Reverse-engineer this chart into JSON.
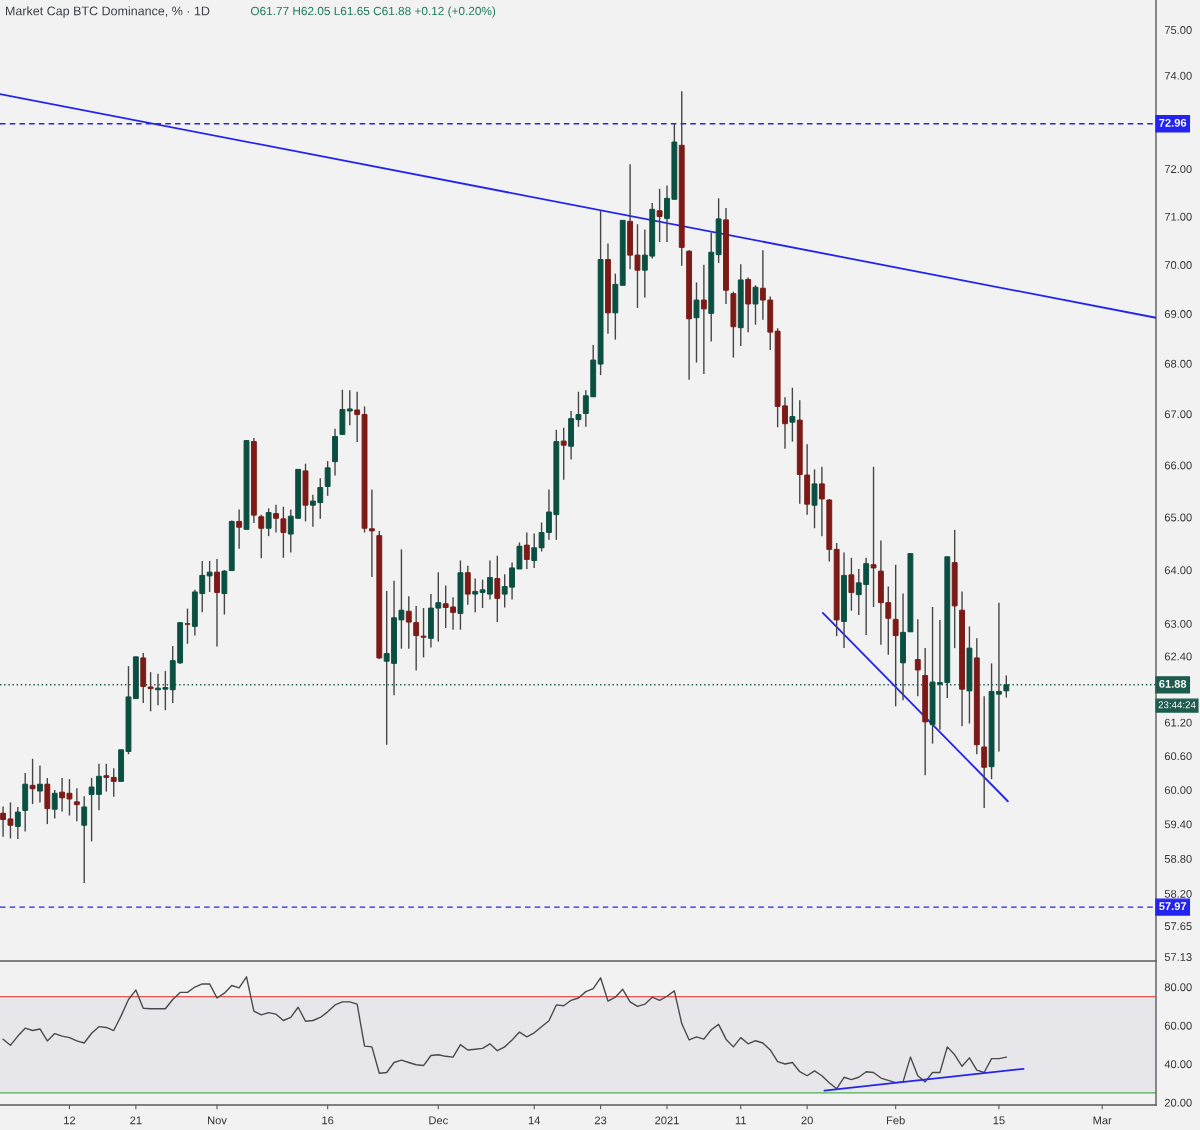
{
  "chart_data": [
    {
      "type": "candlestick",
      "title": "Market Cap BTC Dominance, % · 1D",
      "subtitle": "O61.77 H62.05 L61.65 C61.88 +0.12 (+0.20%)",
      "x": [
        "2020-10-03",
        "2020-10-04",
        "2020-10-05",
        "2020-10-06",
        "2020-10-07",
        "2020-10-08",
        "2020-10-09",
        "2020-10-10",
        "2020-10-11",
        "2020-10-12",
        "2020-10-13",
        "2020-10-14",
        "2020-10-15",
        "2020-10-16",
        "2020-10-17",
        "2020-10-18",
        "2020-10-19",
        "2020-10-20",
        "2020-10-21",
        "2020-10-22",
        "2020-10-23",
        "2020-10-24",
        "2020-10-25",
        "2020-10-26",
        "2020-10-27",
        "2020-10-28",
        "2020-10-29",
        "2020-10-30",
        "2020-10-31",
        "2020-11-01",
        "2020-11-02",
        "2020-11-03",
        "2020-11-04",
        "2020-11-05",
        "2020-11-06",
        "2020-11-07",
        "2020-11-08",
        "2020-11-09",
        "2020-11-10",
        "2020-11-11",
        "2020-11-12",
        "2020-11-13",
        "2020-11-14",
        "2020-11-15",
        "2020-11-16",
        "2020-11-17",
        "2020-11-18",
        "2020-11-19",
        "2020-11-20",
        "2020-11-21",
        "2020-11-22",
        "2020-11-23",
        "2020-11-24",
        "2020-11-25",
        "2020-11-26",
        "2020-11-27",
        "2020-11-28",
        "2020-11-29",
        "2020-11-30",
        "2020-12-01",
        "2020-12-02",
        "2020-12-03",
        "2020-12-04",
        "2020-12-05",
        "2020-12-06",
        "2020-12-07",
        "2020-12-08",
        "2020-12-09",
        "2020-12-10",
        "2020-12-11",
        "2020-12-12",
        "2020-12-13",
        "2020-12-14",
        "2020-12-15",
        "2020-12-16",
        "2020-12-17",
        "2020-12-18",
        "2020-12-19",
        "2020-12-20",
        "2020-12-21",
        "2020-12-22",
        "2020-12-23",
        "2020-12-24",
        "2020-12-25",
        "2020-12-26",
        "2020-12-27",
        "2020-12-28",
        "2020-12-29",
        "2020-12-30",
        "2020-12-31",
        "2021-01-01",
        "2021-01-02",
        "2021-01-03",
        "2021-01-04",
        "2021-01-05",
        "2021-01-06",
        "2021-01-07",
        "2021-01-08",
        "2021-01-09",
        "2021-01-10",
        "2021-01-11",
        "2021-01-12",
        "2021-01-13",
        "2021-01-14",
        "2021-01-15",
        "2021-01-16",
        "2021-01-17",
        "2021-01-18",
        "2021-01-19",
        "2021-01-20",
        "2021-01-21",
        "2021-01-22",
        "2021-01-23",
        "2021-01-24",
        "2021-01-25",
        "2021-01-26",
        "2021-01-27",
        "2021-01-28",
        "2021-01-29",
        "2021-01-30",
        "2021-01-31",
        "2021-02-01",
        "2021-02-02",
        "2021-02-03",
        "2021-02-04",
        "2021-02-05",
        "2021-02-06",
        "2021-02-07",
        "2021-02-08",
        "2021-02-09",
        "2021-02-10",
        "2021-02-11",
        "2021-02-12",
        "2021-02-13",
        "2021-02-14",
        "2021-02-15",
        "2021-02-16"
      ],
      "ohlc": [
        [
          59.59,
          59.71,
          59.18,
          59.48
        ],
        [
          59.49,
          59.78,
          59.15,
          59.38
        ],
        [
          59.36,
          59.7,
          59.14,
          59.61
        ],
        [
          59.64,
          60.3,
          59.27,
          60.1
        ],
        [
          60.08,
          60.55,
          59.75,
          60.02
        ],
        [
          59.98,
          60.43,
          59.78,
          60.1
        ],
        [
          60.1,
          60.21,
          59.4,
          59.67
        ],
        [
          59.66,
          60.0,
          59.5,
          59.94
        ],
        [
          59.96,
          60.21,
          59.62,
          59.86
        ],
        [
          59.94,
          60.19,
          59.55,
          59.84
        ],
        [
          59.79,
          60.03,
          59.45,
          59.74
        ],
        [
          59.38,
          59.89,
          58.38,
          59.7
        ],
        [
          59.92,
          60.21,
          59.1,
          60.05
        ],
        [
          59.92,
          60.46,
          59.64,
          60.24
        ],
        [
          60.25,
          60.46,
          59.97,
          60.22
        ],
        [
          60.22,
          60.38,
          59.88,
          60.15
        ],
        [
          60.15,
          60.71,
          60.15,
          60.71
        ],
        [
          60.68,
          62.22,
          60.63,
          61.66
        ],
        [
          61.63,
          62.39,
          61.63,
          62.39
        ],
        [
          62.37,
          62.46,
          61.55,
          61.85
        ],
        [
          61.84,
          62.11,
          61.4,
          61.81
        ],
        [
          61.79,
          62.08,
          61.51,
          61.82
        ],
        [
          61.8,
          62.13,
          61.42,
          61.83
        ],
        [
          61.79,
          62.59,
          61.55,
          62.32
        ],
        [
          62.28,
          63.02,
          62.26,
          63.02
        ],
        [
          63.0,
          63.28,
          62.63,
          62.99
        ],
        [
          62.95,
          63.63,
          62.78,
          63.59
        ],
        [
          63.56,
          64.17,
          63.21,
          63.9
        ],
        [
          63.89,
          64.17,
          63.59,
          63.96
        ],
        [
          63.96,
          64.21,
          62.58,
          63.58
        ],
        [
          63.56,
          64.0,
          63.17,
          63.98
        ],
        [
          63.99,
          64.94,
          63.99,
          64.92
        ],
        [
          64.92,
          65.15,
          64.4,
          64.81
        ],
        [
          64.77,
          66.48,
          64.77,
          66.48
        ],
        [
          66.46,
          66.53,
          64.89,
          65.04
        ],
        [
          65.01,
          65.05,
          64.22,
          64.79
        ],
        [
          64.79,
          65.17,
          64.64,
          65.09
        ],
        [
          65.07,
          65.24,
          64.71,
          64.98
        ],
        [
          64.97,
          65.2,
          64.23,
          64.71
        ],
        [
          64.68,
          65.15,
          64.33,
          65.02
        ],
        [
          64.98,
          65.92,
          64.98,
          65.92
        ],
        [
          65.89,
          66.03,
          64.92,
          65.23
        ],
        [
          65.23,
          65.43,
          64.82,
          65.31
        ],
        [
          65.28,
          65.75,
          64.97,
          65.57
        ],
        [
          65.59,
          66.08,
          65.41,
          65.95
        ],
        [
          66.07,
          66.71,
          65.8,
          66.56
        ],
        [
          66.6,
          67.48,
          66.6,
          67.09
        ],
        [
          67.06,
          67.47,
          66.78,
          67.1
        ],
        [
          67.08,
          67.44,
          66.45,
          66.99
        ],
        [
          66.99,
          67.15,
          64.71,
          64.79
        ],
        [
          64.78,
          65.53,
          63.87,
          64.74
        ],
        [
          64.65,
          64.74,
          62.35,
          62.37
        ],
        [
          62.31,
          63.61,
          60.8,
          62.45
        ],
        [
          62.27,
          63.8,
          61.69,
          63.11
        ],
        [
          63.07,
          64.39,
          62.54,
          63.25
        ],
        [
          63.23,
          63.51,
          62.54,
          63.03
        ],
        [
          63.02,
          63.33,
          62.14,
          62.78
        ],
        [
          62.77,
          63.29,
          62.38,
          62.75
        ],
        [
          62.73,
          63.55,
          62.56,
          63.29
        ],
        [
          63.29,
          63.96,
          62.67,
          63.39
        ],
        [
          63.37,
          63.71,
          62.92,
          63.3
        ],
        [
          63.31,
          63.49,
          62.89,
          63.21
        ],
        [
          63.19,
          64.18,
          62.89,
          63.95
        ],
        [
          63.95,
          64.08,
          63.35,
          63.55
        ],
        [
          63.55,
          63.84,
          63.21,
          63.6
        ],
        [
          63.58,
          63.82,
          63.29,
          63.63
        ],
        [
          63.55,
          64.18,
          63.45,
          63.86
        ],
        [
          63.84,
          64.27,
          63.03,
          63.47
        ],
        [
          63.55,
          63.92,
          63.3,
          63.69
        ],
        [
          63.68,
          64.14,
          63.45,
          64.04
        ],
        [
          64.02,
          64.52,
          64.02,
          64.45
        ],
        [
          64.47,
          64.71,
          64.02,
          64.2
        ],
        [
          64.18,
          64.69,
          64.04,
          64.42
        ],
        [
          64.42,
          64.9,
          64.35,
          64.71
        ],
        [
          64.71,
          65.53,
          64.57,
          65.1
        ],
        [
          65.05,
          66.69,
          64.57,
          66.46
        ],
        [
          66.47,
          66.73,
          65.72,
          66.39
        ],
        [
          66.37,
          67.06,
          66.11,
          66.91
        ],
        [
          66.89,
          67.44,
          66.75,
          66.99
        ],
        [
          67.01,
          67.47,
          66.75,
          67.36
        ],
        [
          67.34,
          68.37,
          67.34,
          68.07
        ],
        [
          67.99,
          71.12,
          67.77,
          70.11
        ],
        [
          70.11,
          70.44,
          68.6,
          69.02
        ],
        [
          69.02,
          69.82,
          68.48,
          69.6
        ],
        [
          69.58,
          70.92,
          69.58,
          70.92
        ],
        [
          70.9,
          72.1,
          69.91,
          70.2
        ],
        [
          70.2,
          70.84,
          69.12,
          69.89
        ],
        [
          69.89,
          70.73,
          69.33,
          70.2
        ],
        [
          70.18,
          71.28,
          70.13,
          71.15
        ],
        [
          71.12,
          71.58,
          70.47,
          71.0
        ],
        [
          70.96,
          71.65,
          70.47,
          71.38
        ],
        [
          71.36,
          72.97,
          71.36,
          72.57
        ],
        [
          72.5,
          73.66,
          69.98,
          70.36
        ],
        [
          70.28,
          70.3,
          67.68,
          68.9
        ],
        [
          68.92,
          69.64,
          68.02,
          69.28
        ],
        [
          69.28,
          70.0,
          67.79,
          69.1
        ],
        [
          69.01,
          70.67,
          68.44,
          70.26
        ],
        [
          70.21,
          71.38,
          70.04,
          70.95
        ],
        [
          70.93,
          71.18,
          69.2,
          69.48
        ],
        [
          69.41,
          69.45,
          68.12,
          68.74
        ],
        [
          68.72,
          70.01,
          68.35,
          69.69
        ],
        [
          69.7,
          69.74,
          68.63,
          69.2
        ],
        [
          69.2,
          69.58,
          68.78,
          69.54
        ],
        [
          69.52,
          70.3,
          68.88,
          69.28
        ],
        [
          69.28,
          69.35,
          68.27,
          68.63
        ],
        [
          68.65,
          68.71,
          66.74,
          67.15
        ],
        [
          67.16,
          67.33,
          66.32,
          66.81
        ],
        [
          66.84,
          67.52,
          66.46,
          66.95
        ],
        [
          66.88,
          67.27,
          65.26,
          65.82
        ],
        [
          65.81,
          66.41,
          65.05,
          65.25
        ],
        [
          65.23,
          65.92,
          64.79,
          65.64
        ],
        [
          65.64,
          65.97,
          64.64,
          65.35
        ],
        [
          65.33,
          65.35,
          64.16,
          64.39
        ],
        [
          64.39,
          64.51,
          62.77,
          63.07
        ],
        [
          63.04,
          64.33,
          62.55,
          63.9
        ],
        [
          63.91,
          64.23,
          63.24,
          63.58
        ],
        [
          63.54,
          64.02,
          63.16,
          63.76
        ],
        [
          63.73,
          64.23,
          62.79,
          64.12
        ],
        [
          64.1,
          65.97,
          63.31,
          64.04
        ],
        [
          63.98,
          64.56,
          62.61,
          63.39
        ],
        [
          63.39,
          63.69,
          62.43,
          63.1
        ],
        [
          63.08,
          64.1,
          61.49,
          62.78
        ],
        [
          62.28,
          63.56,
          61.6,
          62.84
        ],
        [
          62.85,
          64.31,
          62.85,
          64.31
        ],
        [
          62.34,
          63.08,
          61.67,
          62.15
        ],
        [
          62.05,
          62.55,
          60.26,
          61.21
        ],
        [
          61.16,
          63.31,
          60.82,
          61.93
        ],
        [
          61.89,
          63.07,
          61.07,
          61.92
        ],
        [
          61.92,
          64.25,
          61.64,
          64.25
        ],
        [
          64.14,
          64.76,
          62.55,
          63.33
        ],
        [
          63.25,
          63.6,
          61.13,
          61.8
        ],
        [
          61.77,
          62.95,
          61.18,
          62.55
        ],
        [
          62.37,
          62.73,
          60.63,
          60.8
        ],
        [
          60.76,
          61.67,
          59.68,
          60.4
        ],
        [
          60.41,
          62.27,
          60.19,
          61.76
        ],
        [
          61.71,
          63.39,
          60.68,
          61.76
        ],
        [
          61.77,
          62.05,
          61.65,
          61.88
        ]
      ],
      "colors": [
        "#7b1a16",
        "#7b1a16",
        "#0a4f41",
        "#0a4f41",
        "#7b1a16",
        "#0a4f41",
        "#7b1a16",
        "#0a4f41",
        "#7b1a16",
        "#7b1a16",
        "#7b1a16",
        "#0a4f41",
        "#0a4f41",
        "#0a4f41",
        "#7b1a16",
        "#7b1a16",
        "#0a4f41",
        "#0a4f41",
        "#0a4f41",
        "#7b1a16",
        "#7b1a16",
        "#0a4f41",
        "#0a4f41",
        "#0a4f41",
        "#0a4f41",
        "#7b1a16",
        "#0a4f41",
        "#0a4f41",
        "#0a4f41",
        "#7b1a16",
        "#0a4f41",
        "#0a4f41",
        "#7b1a16",
        "#0a4f41",
        "#7b1a16",
        "#7b1a16",
        "#0a4f41",
        "#7b1a16",
        "#7b1a16",
        "#0a4f41",
        "#0a4f41",
        "#7b1a16",
        "#0a4f41",
        "#0a4f41",
        "#0a4f41",
        "#0a4f41",
        "#0a4f41",
        "#0a4f41",
        "#7b1a16",
        "#7b1a16",
        "#7b1a16",
        "#7b1a16",
        "#0a4f41",
        "#0a4f41",
        "#0a4f41",
        "#7b1a16",
        "#7b1a16",
        "#7b1a16",
        "#0a4f41",
        "#0a4f41",
        "#7b1a16",
        "#7b1a16",
        "#0a4f41",
        "#7b1a16",
        "#0a4f41",
        "#0a4f41",
        "#0a4f41",
        "#7b1a16",
        "#0a4f41",
        "#0a4f41",
        "#0a4f41",
        "#7b1a16",
        "#0a4f41",
        "#0a4f41",
        "#0a4f41",
        "#0a4f41",
        "#7b1a16",
        "#0a4f41",
        "#0a4f41",
        "#0a4f41",
        "#0a4f41",
        "#0a4f41",
        "#7b1a16",
        "#0a4f41",
        "#0a4f41",
        "#7b1a16",
        "#7b1a16",
        "#0a4f41",
        "#0a4f41",
        "#7b1a16",
        "#0a4f41",
        "#0a4f41",
        "#7b1a16",
        "#7b1a16",
        "#0a4f41",
        "#7b1a16",
        "#0a4f41",
        "#0a4f41",
        "#7b1a16",
        "#7b1a16",
        "#0a4f41",
        "#7b1a16",
        "#0a4f41",
        "#7b1a16",
        "#7b1a16",
        "#7b1a16",
        "#7b1a16",
        "#0a4f41",
        "#7b1a16",
        "#7b1a16",
        "#0a4f41",
        "#7b1a16",
        "#7b1a16",
        "#7b1a16",
        "#0a4f41",
        "#7b1a16",
        "#0a4f41",
        "#0a4f41",
        "#7b1a16",
        "#7b1a16",
        "#7b1a16",
        "#7b1a16",
        "#0a4f41",
        "#0a4f41",
        "#7b1a16",
        "#7b1a16",
        "#0a4f41",
        "#0a4f41",
        "#0a4f41",
        "#7b1a16",
        "#7b1a16",
        "#0a4f41",
        "#7b1a16",
        "#7b1a16",
        "#0a4f41",
        "#0a4f41",
        "#0a4f41"
      ],
      "series": [
        {
          "type": "line",
          "x": [
            "2020-10-02T14:00",
            "2021-03-08T07:00"
          ],
          "values": [
            73.6,
            68.92
          ],
          "color": "#2424f0"
        },
        {
          "type": "line",
          "x": [
            "2021-01-22T03:00",
            "2021-02-16T05:00"
          ],
          "values": [
            63.2,
            59.8
          ],
          "color": "#2424f0"
        }
      ],
      "log": true,
      "xlim": [
        "2020-10-02T14:00",
        "2021-03-08T07:00"
      ],
      "ylim": [
        57.06,
        75.66
      ],
      "yticks": [
        {
          "value": 75,
          "label": "75.00"
        },
        {
          "value": 74,
          "label": "74.00"
        },
        {
          "value": 72,
          "label": "72.00"
        },
        {
          "value": 71,
          "label": "71.00"
        },
        {
          "value": 70,
          "label": "70.00"
        },
        {
          "value": 69,
          "label": "69.00"
        },
        {
          "value": 68,
          "label": "68.00"
        },
        {
          "value": 67,
          "label": "67.00"
        },
        {
          "value": 66,
          "label": "66.00"
        },
        {
          "value": 65,
          "label": "65.00"
        },
        {
          "value": 64,
          "label": "64.00"
        },
        {
          "value": 63,
          "label": "63.00"
        },
        {
          "value": 62.4,
          "label": "62.40"
        },
        {
          "value": 61.2,
          "label": "61.20"
        },
        {
          "value": 60.6,
          "label": "60.60"
        },
        {
          "value": 60,
          "label": "60.00"
        },
        {
          "value": 59.4,
          "label": "59.40"
        },
        {
          "value": 58.8,
          "label": "58.80"
        },
        {
          "value": 58.2,
          "label": "58.20"
        },
        {
          "value": 57.65,
          "label": "57.65"
        },
        {
          "value": 57.13,
          "label": "57.13"
        }
      ],
      "tick_labels": "y",
      "ref_lines": [
        {
          "axis": "y",
          "value": 72.96,
          "label": "72.96",
          "color": "#2424f0",
          "line_style": "dashed"
        },
        {
          "axis": "y",
          "value": 61.88,
          "label": "61.88",
          "color": "#1d5c4c",
          "line_style": "dotted"
        },
        {
          "axis": "y",
          "value": 57.97,
          "label": "57.97",
          "color": "#2424f0",
          "line_style": "dashed"
        }
      ],
      "annotations": [
        {
          "text": "23:44:24",
          "x": "2021-03-08T07:00",
          "y": 61.88
        }
      ]
    },
    {
      "type": "line",
      "x": [
        "2020-10-03",
        "2020-10-04",
        "2020-10-05",
        "2020-10-06",
        "2020-10-07",
        "2020-10-08",
        "2020-10-09",
        "2020-10-10",
        "2020-10-11",
        "2020-10-12",
        "2020-10-13",
        "2020-10-14",
        "2020-10-15",
        "2020-10-16",
        "2020-10-17",
        "2020-10-18",
        "2020-10-19",
        "2020-10-20",
        "2020-10-21",
        "2020-10-22",
        "2020-10-23",
        "2020-10-24",
        "2020-10-25",
        "2020-10-26",
        "2020-10-27",
        "2020-10-28",
        "2020-10-29",
        "2020-10-30",
        "2020-10-31",
        "2020-11-01",
        "2020-11-02",
        "2020-11-03",
        "2020-11-04",
        "2020-11-05",
        "2020-11-06",
        "2020-11-07",
        "2020-11-08",
        "2020-11-09",
        "2020-11-10",
        "2020-11-11",
        "2020-11-12",
        "2020-11-13",
        "2020-11-14",
        "2020-11-15",
        "2020-11-16",
        "2020-11-17",
        "2020-11-18",
        "2020-11-19",
        "2020-11-20",
        "2020-11-21",
        "2020-11-22",
        "2020-11-23",
        "2020-11-24",
        "2020-11-25",
        "2020-11-26",
        "2020-11-27",
        "2020-11-28",
        "2020-11-29",
        "2020-11-30",
        "2020-12-01",
        "2020-12-02",
        "2020-12-03",
        "2020-12-04",
        "2020-12-05",
        "2020-12-06",
        "2020-12-07",
        "2020-12-08",
        "2020-12-09",
        "2020-12-10",
        "2020-12-11",
        "2020-12-12",
        "2020-12-13",
        "2020-12-14",
        "2020-12-15",
        "2020-12-16",
        "2020-12-17",
        "2020-12-18",
        "2020-12-19",
        "2020-12-20",
        "2020-12-21",
        "2020-12-22",
        "2020-12-23",
        "2020-12-24",
        "2020-12-25",
        "2020-12-26",
        "2020-12-27",
        "2020-12-28",
        "2020-12-29",
        "2020-12-30",
        "2020-12-31",
        "2021-01-01",
        "2021-01-02",
        "2021-01-03",
        "2021-01-04",
        "2021-01-05",
        "2021-01-06",
        "2021-01-07",
        "2021-01-08",
        "2021-01-09",
        "2021-01-10",
        "2021-01-11",
        "2021-01-12",
        "2021-01-13",
        "2021-01-14",
        "2021-01-15",
        "2021-01-16",
        "2021-01-17",
        "2021-01-18",
        "2021-01-19",
        "2021-01-20",
        "2021-01-21",
        "2021-01-22",
        "2021-01-23",
        "2021-01-24",
        "2021-01-25",
        "2021-01-26",
        "2021-01-27",
        "2021-01-28",
        "2021-01-29",
        "2021-01-30",
        "2021-01-31",
        "2021-02-01",
        "2021-02-02",
        "2021-02-03",
        "2021-02-04",
        "2021-02-05",
        "2021-02-06",
        "2021-02-07",
        "2021-02-08",
        "2021-02-09",
        "2021-02-10",
        "2021-02-11",
        "2021-02-12",
        "2021-02-13",
        "2021-02-14",
        "2021-02-15",
        "2021-02-16"
      ],
      "series": [
        {
          "color": "#4a4a4a",
          "values": [
            52.9,
            49.7,
            54.5,
            58.6,
            57.4,
            58.2,
            52.0,
            55.8,
            54.5,
            53.7,
            52.0,
            50.9,
            56.0,
            59.4,
            59.0,
            57.4,
            65.0,
            73.5,
            78.4,
            69.0,
            68.7,
            68.7,
            68.7,
            73.5,
            77.2,
            77.2,
            80.0,
            81.6,
            81.6,
            74.3,
            76.8,
            80.8,
            79.6,
            85.3,
            67.5,
            65.5,
            66.7,
            65.9,
            62.6,
            64.2,
            69.5,
            62.2,
            62.6,
            64.2,
            67.1,
            70.7,
            72.3,
            72.3,
            71.1,
            49.3,
            48.9,
            35.2,
            35.6,
            40.8,
            42.0,
            40.8,
            39.6,
            39.2,
            44.4,
            44.8,
            44.0,
            43.6,
            50.1,
            47.3,
            47.7,
            48.1,
            50.5,
            46.9,
            48.9,
            52.5,
            56.6,
            54.1,
            56.2,
            59.4,
            62.5,
            70.7,
            70.3,
            73.1,
            74.3,
            77.6,
            79.2,
            84.8,
            72.7,
            74.7,
            78.8,
            72.3,
            69.9,
            71.1,
            74.7,
            73.1,
            75.2,
            78.0,
            61.0,
            52.5,
            54.1,
            52.9,
            57.8,
            60.6,
            52.9,
            48.9,
            53.7,
            50.5,
            52.1,
            50.9,
            47.3,
            41.2,
            40.0,
            40.8,
            36.0,
            33.9,
            36.4,
            33.9,
            30.3,
            27.1,
            33.1,
            31.9,
            33.1,
            36.0,
            35.6,
            32.7,
            31.5,
            30.3,
            30.7,
            43.6,
            33.9,
            30.7,
            35.6,
            35.6,
            48.9,
            44.8,
            38.8,
            43.2,
            36.8,
            35.6,
            42.8,
            42.8,
            43.6
          ]
        },
        {
          "x": [
            "2021-01-22T08:00",
            "2021-02-18T08:00"
          ],
          "values": [
            26.2,
            37.5
          ],
          "color": "#2424f0"
        }
      ],
      "xlim": [
        "2020-10-02T14:00",
        "2021-03-08T07:00"
      ],
      "ylim": [
        18.7,
        93.0
      ],
      "yticks": [
        {
          "value": 80,
          "label": "80.00"
        },
        {
          "value": 60,
          "label": "60.00"
        },
        {
          "value": 40,
          "label": "40.00"
        },
        {
          "value": 20,
          "label": "20.00"
        }
      ],
      "xticks": [
        {
          "value": "2020-10-12",
          "label": "12"
        },
        {
          "value": "2020-10-21",
          "label": "21"
        },
        {
          "value": "2020-11-01",
          "label": "Nov"
        },
        {
          "value": "2020-11-16",
          "label": "16"
        },
        {
          "value": "2020-12-01",
          "label": "Dec"
        },
        {
          "value": "2020-12-14",
          "label": "14"
        },
        {
          "value": "2020-12-23",
          "label": "23"
        },
        {
          "value": "2021-01-01",
          "label": "2021"
        },
        {
          "value": "2021-01-11",
          "label": "11"
        },
        {
          "value": "2021-01-20",
          "label": "20"
        },
        {
          "value": "2021-02-01",
          "label": "Feb"
        },
        {
          "value": "2021-02-15",
          "label": "15"
        },
        {
          "value": "2021-03-01",
          "label": "Mar"
        }
      ],
      "ref_lines": [
        {
          "axis": "y",
          "value": 75,
          "color": "#e8554e"
        },
        {
          "axis": "y",
          "value": 25,
          "color": "#4caf50"
        }
      ],
      "bands": [
        {
          "axis": "y",
          "from": 25,
          "to": 75,
          "color": "#e7e7eb"
        }
      ]
    }
  ]
}
